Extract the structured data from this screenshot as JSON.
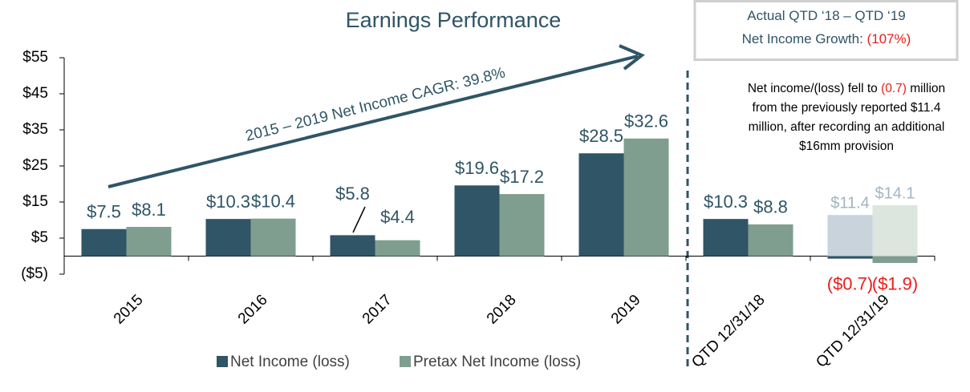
{
  "chart_data": {
    "type": "bar",
    "title": "Earnings Performance",
    "categories": [
      "2015",
      "2016",
      "2017",
      "2018",
      "2019",
      "QTD 12/31/18",
      "QTD 12/31/19"
    ],
    "series": [
      {
        "name": "Net Income (loss)",
        "color": "#2f5566",
        "values": [
          7.5,
          10.3,
          5.8,
          19.6,
          28.5,
          10.3,
          -0.7
        ],
        "value_labels": [
          "$7.5",
          "$10.3",
          "$5.8",
          "$19.6",
          "$28.5",
          "$10.3",
          "($0.7)"
        ]
      },
      {
        "name": "Pretax Net Income (loss)",
        "color": "#7f9e8f",
        "values": [
          8.1,
          10.4,
          4.4,
          17.2,
          32.6,
          8.8,
          -1.9
        ],
        "value_labels": [
          "$8.1",
          "$10.4",
          "$4.4",
          "$17.2",
          "$32.6",
          "$8.8",
          "($1.9)"
        ]
      }
    ],
    "previously_reported": {
      "category": "QTD 12/31/19",
      "colors": [
        "#c9d3dc",
        "#dde5df"
      ],
      "label_color": "#a3b5c2",
      "values": [
        11.4,
        14.1
      ],
      "value_labels": [
        "$11.4",
        "$14.1"
      ]
    },
    "negative_label_color": "#e8201d",
    "ylim": [
      -5,
      55
    ],
    "yticks": [
      {
        "value": -5,
        "label": "($5)"
      },
      {
        "value": 5,
        "label": "$5"
      },
      {
        "value": 15,
        "label": "$15"
      },
      {
        "value": 25,
        "label": "$25"
      },
      {
        "value": 35,
        "label": "$35"
      },
      {
        "value": 45,
        "label": "$45"
      },
      {
        "value": 55,
        "label": "$55"
      }
    ],
    "arrow_label": "2015 – 2019 Net Income CAGR: 39.8%",
    "box_lines": [
      [
        "Actual QTD ‘18 – QTD ‘19"
      ],
      [
        "Net Income Growth: ",
        "(107%)"
      ]
    ],
    "annotation_lines": [
      [
        "Net income/(loss) fell to ",
        "(0.7)",
        " million"
      ],
      [
        "from the previously reported $11.4"
      ],
      [
        "million, after recording an additional"
      ],
      [
        "$16mm provision"
      ]
    ],
    "highlight_color": "#e8201d"
  }
}
